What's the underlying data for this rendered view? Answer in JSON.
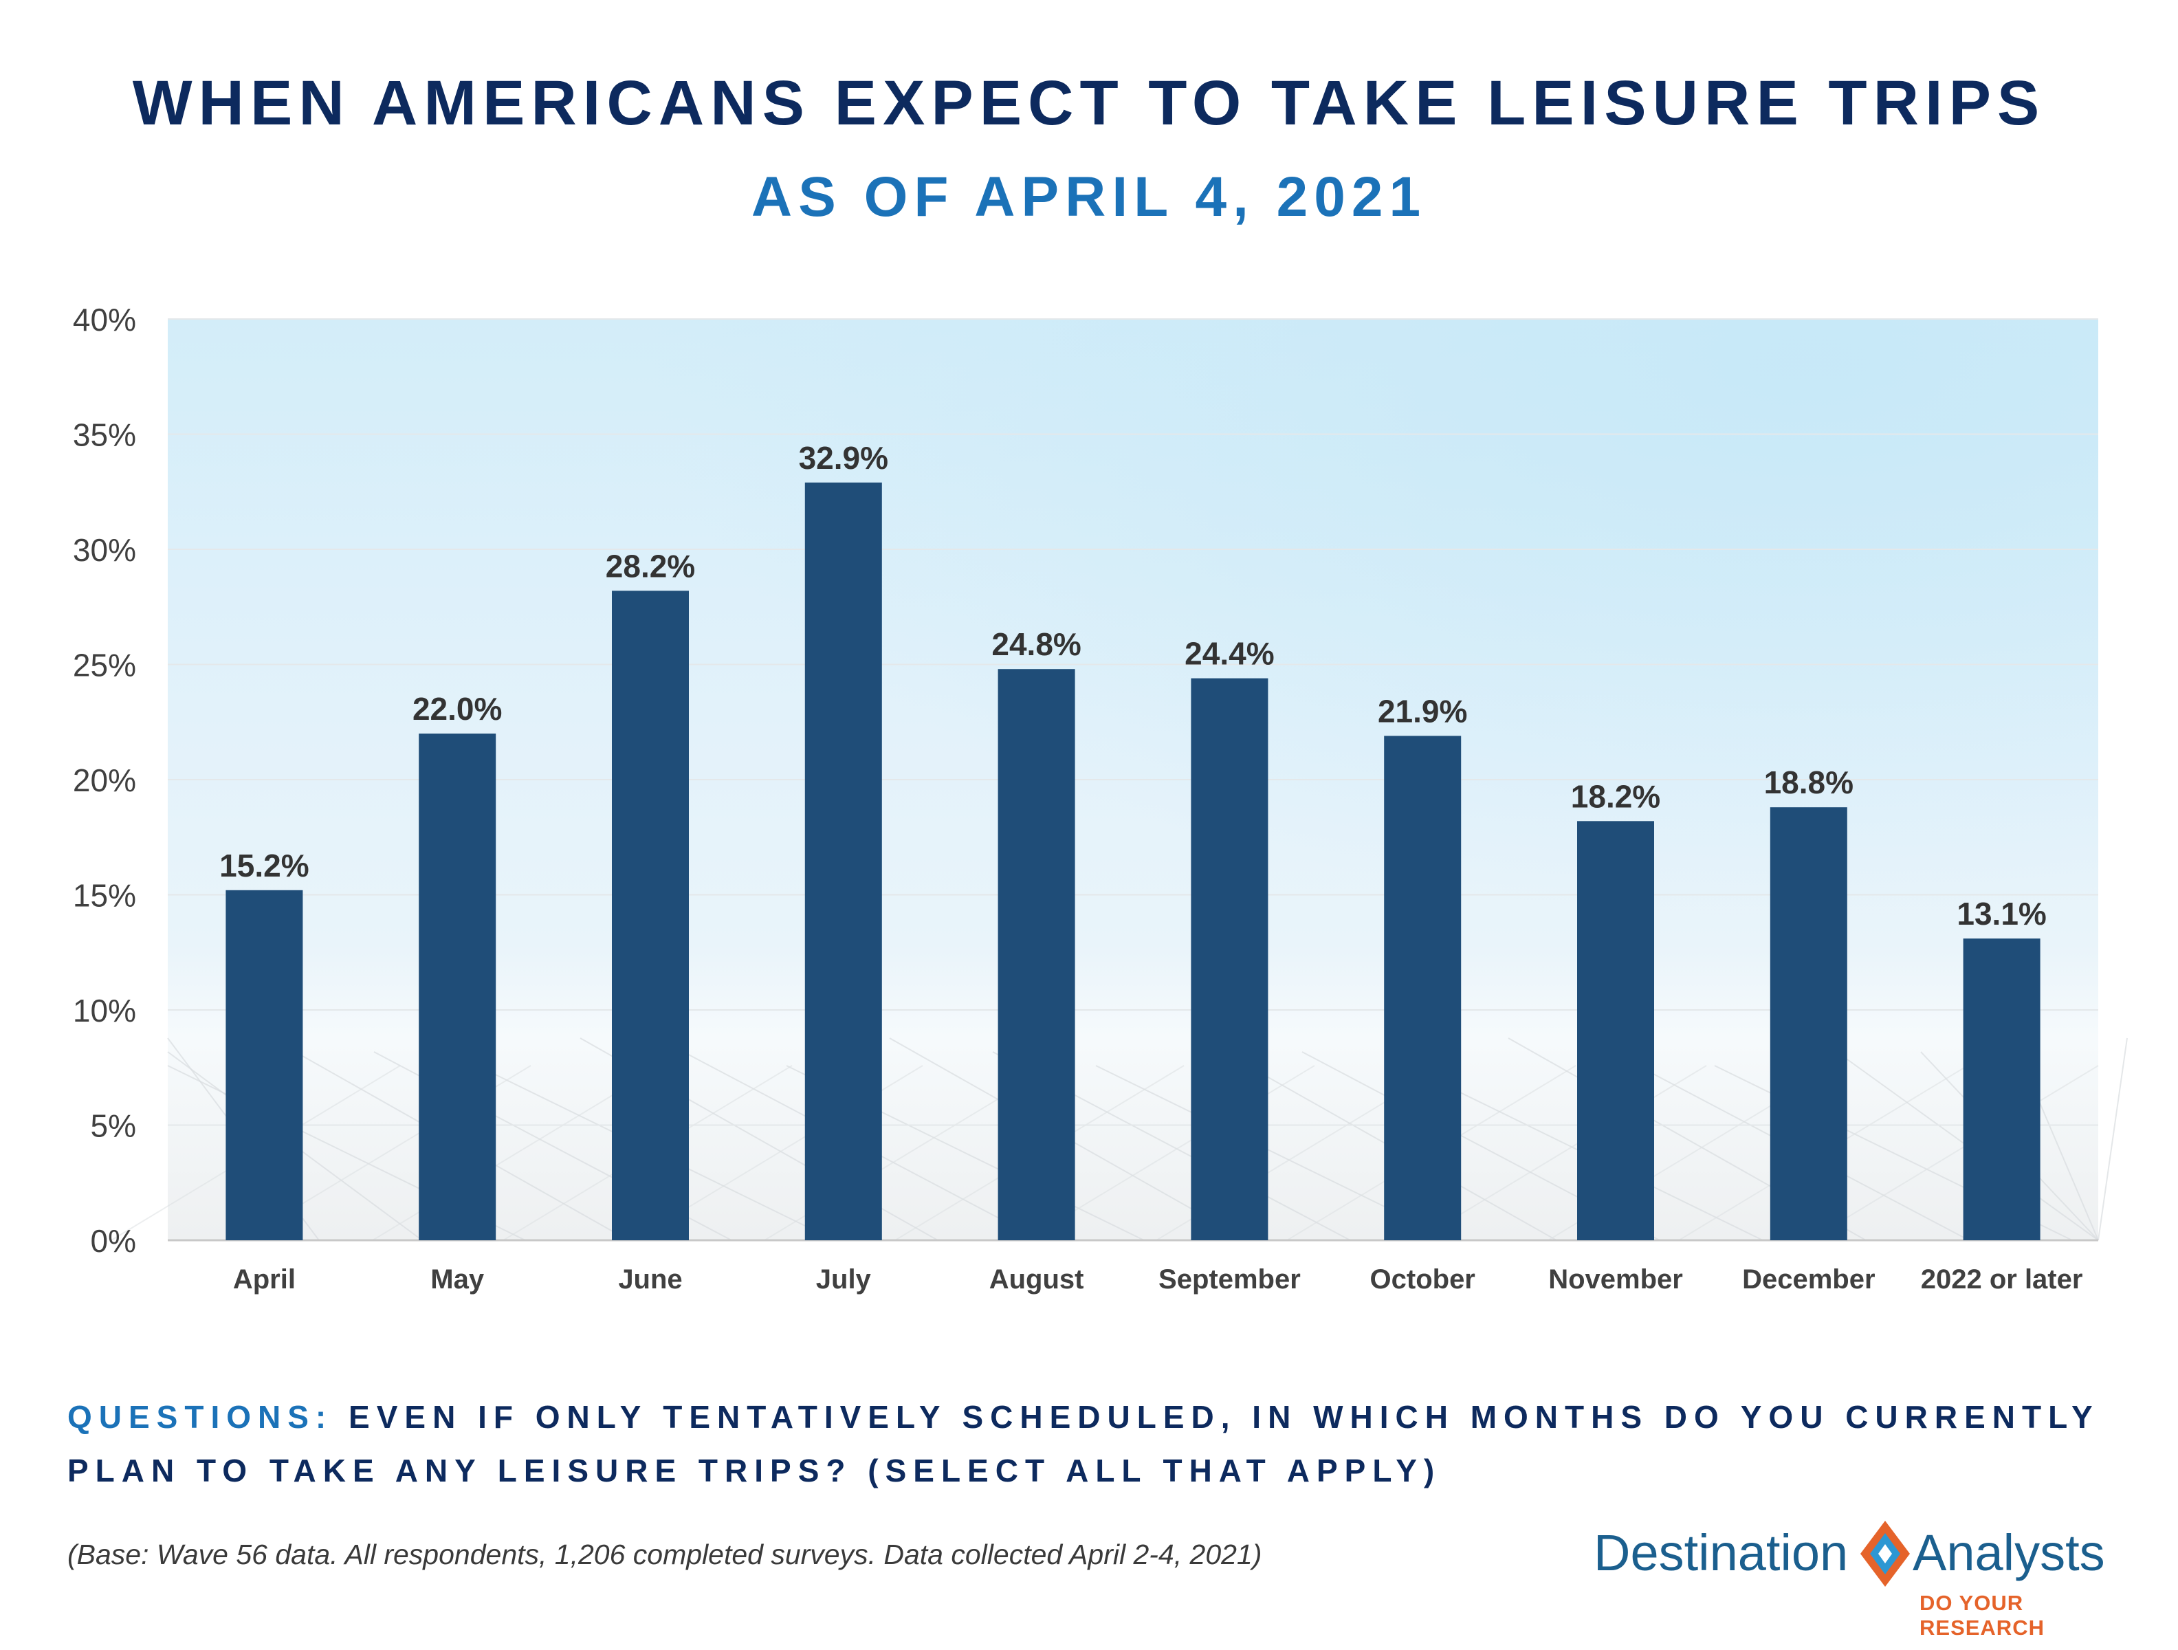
{
  "title": "WHEN AMERICANS EXPECT TO TAKE LEISURE TRIPS",
  "subtitle": "AS OF APRIL 4, 2021",
  "question_label": "QUESTIONS:",
  "question_text": "EVEN IF ONLY TENTATIVELY SCHEDULED, IN WHICH MONTHS DO YOU CURRENTLY PLAN TO TAKE ANY LEISURE TRIPS? (SELECT ALL THAT APPLY)",
  "base_note": "(Base: Wave 56 data. All respondents, 1,206 completed surveys. Data collected April 2-4, 2021)",
  "logo": {
    "word_left": "Destination",
    "word_right": "Analysts",
    "tagline": "DO YOUR RESEARCH"
  },
  "colors": {
    "bar": "#1f4d78",
    "title": "#0d2a5e",
    "subtitle": "#1b72b8",
    "tagline": "#e5632a"
  },
  "chart_data": {
    "type": "bar",
    "categories": [
      "April",
      "May",
      "June",
      "July",
      "August",
      "September",
      "October",
      "November",
      "December",
      "2022 or later"
    ],
    "values": [
      15.2,
      22.0,
      28.2,
      32.9,
      24.8,
      24.4,
      21.9,
      18.2,
      18.8,
      13.1
    ],
    "data_labels": [
      "15.2%",
      "22.0%",
      "28.2%",
      "32.9%",
      "24.8%",
      "24.4%",
      "21.9%",
      "18.2%",
      "18.8%",
      "13.1%"
    ],
    "y_ticks": [
      0,
      5,
      10,
      15,
      20,
      25,
      30,
      35,
      40
    ],
    "y_tick_labels": [
      "0%",
      "5%",
      "10%",
      "15%",
      "20%",
      "25%",
      "30%",
      "35%",
      "40%"
    ],
    "ylim": [
      0,
      40
    ],
    "xlabel": "",
    "ylabel": "",
    "grid": true,
    "legend": false
  }
}
